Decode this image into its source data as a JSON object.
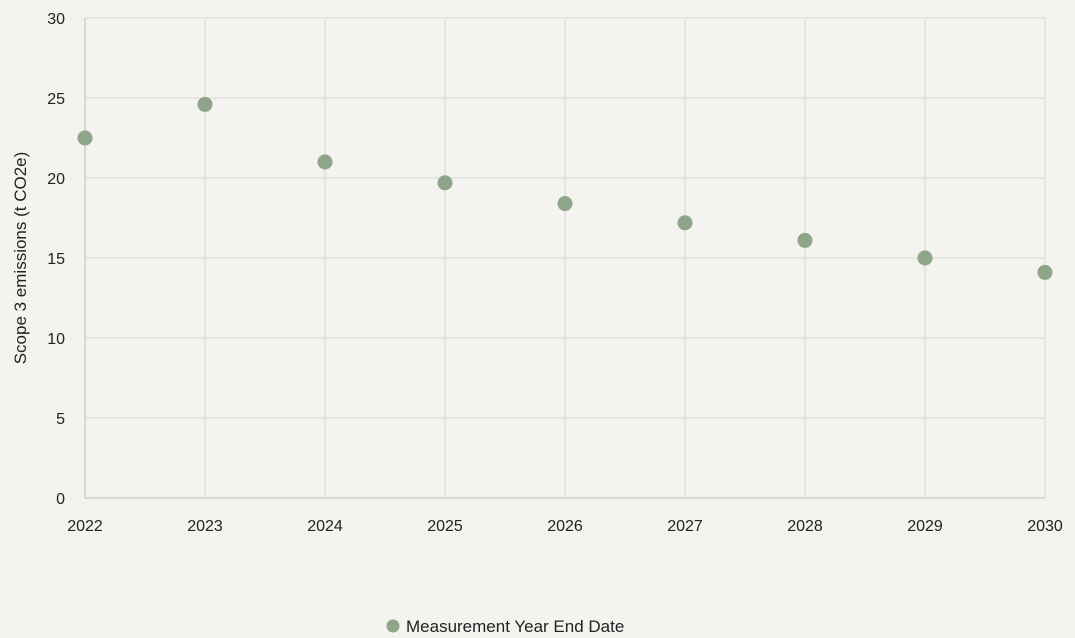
{
  "chart_data": {
    "type": "scatter",
    "title": "",
    "xlabel": "",
    "ylabel": "Scope 3 emissions (t CO2e)",
    "x": [
      2022,
      2023,
      2024,
      2025,
      2026,
      2027,
      2028,
      2029,
      2030
    ],
    "xlim": [
      2022,
      2030
    ],
    "ylim": [
      0,
      30
    ],
    "x_ticks": [
      "2022",
      "2023",
      "2024",
      "2025",
      "2026",
      "2027",
      "2028",
      "2029",
      "2030"
    ],
    "y_ticks": [
      "0",
      "5",
      "10",
      "15",
      "20",
      "25",
      "30"
    ],
    "grid": true,
    "legend_position": "bottom",
    "series": [
      {
        "name": "Measurement Year End Date",
        "color": "#8ea58a",
        "values": [
          22.5,
          24.6,
          21.0,
          19.7,
          18.4,
          17.2,
          16.1,
          15.0,
          14.1
        ]
      }
    ]
  }
}
